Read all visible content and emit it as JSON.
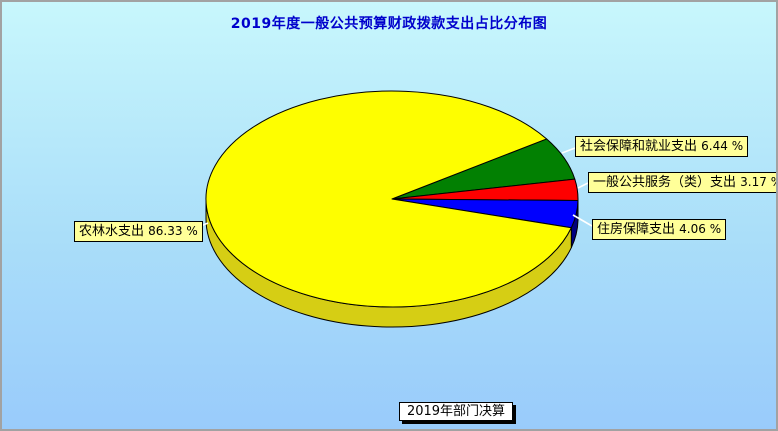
{
  "chart_data": {
    "type": "pie",
    "style": "3d",
    "title": "2019年度一般公共预算财政拨款支出占比分布图",
    "unit": "%",
    "start_angle_deg": 33.8,
    "direction": "clockwise",
    "legend_position": "callout-labels",
    "slices": [
      {
        "label": "社会保障和就业支出",
        "value": 6.44,
        "color": "#028002",
        "side_color": "#014d01"
      },
      {
        "label": "一般公共服务（类）支出",
        "value": 3.17,
        "color": "#fe0000",
        "side_color": "#8b0000"
      },
      {
        "label": "住房保障支出",
        "value": 4.06,
        "color": "#0000fe",
        "side_color": "#00007e"
      },
      {
        "label": "农林水支出",
        "value": 86.33,
        "color": "#fefe00",
        "side_color": "#d6ce14"
      }
    ],
    "label_box_bg": "#ffff99",
    "leader_line_color": "#ffffff"
  },
  "footer": {
    "label": "2019年部门决算"
  },
  "colors": {
    "title_text": "#0000cc",
    "background_top": "#c8f7fc",
    "background_bottom": "#99cbfb",
    "frame": "#a2a2a2",
    "slice_outline": "#000000"
  }
}
